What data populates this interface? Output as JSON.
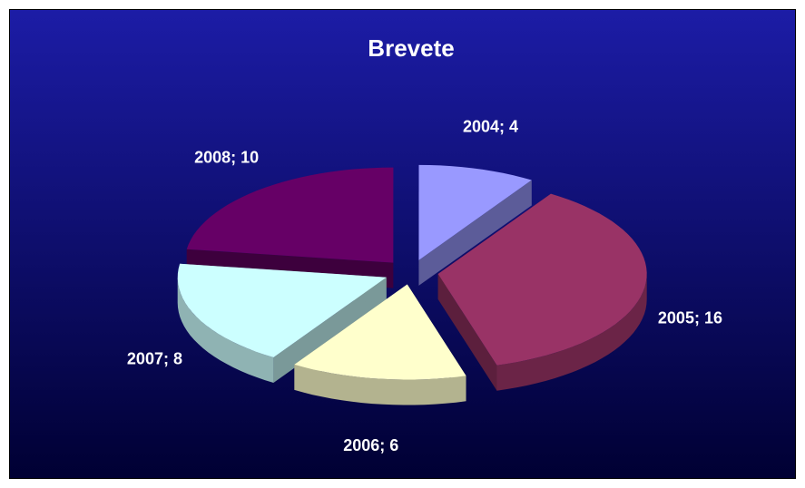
{
  "chart_data": {
    "type": "pie3d",
    "title": "Brevete",
    "categories": [
      "2004",
      "2005",
      "2006",
      "2007",
      "2008"
    ],
    "values": [
      4,
      16,
      6,
      8,
      10
    ],
    "value_labels": [
      "2004; 4",
      "2005; 16",
      "2006; 6",
      "2007; 8",
      "2008; 10"
    ],
    "colors": [
      "#9999ff",
      "#993366",
      "#ffffcc",
      "#ccffff",
      "#660066"
    ]
  }
}
